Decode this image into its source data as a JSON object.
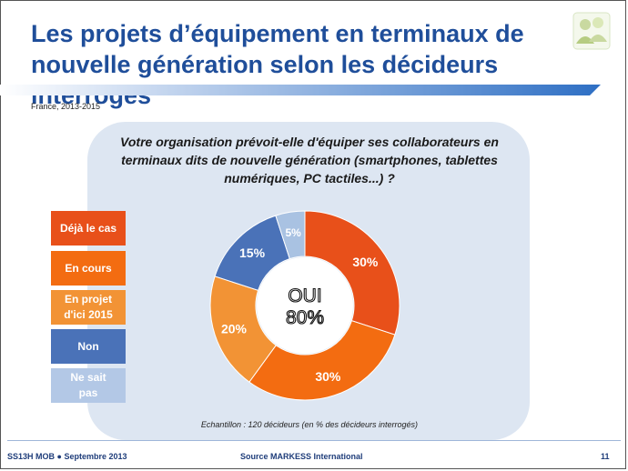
{
  "header": {
    "title": "Les projets d’équipement en terminaux de nouvelle génération selon les décideurs interrogés",
    "subtitle": "France, 2013-2015"
  },
  "chart_data": {
    "type": "pie",
    "title": "Votre organisation prévoit-elle d'équiper ses collaborateurs en terminaux dits de nouvelle génération (smartphones, tablettes numériques, PC tactiles...) ?",
    "categories": [
      "Déjà le cas",
      "En cours",
      "En projet d'ici 2015",
      "Non",
      "Ne sait pas"
    ],
    "values": [
      30,
      30,
      20,
      15,
      5
    ],
    "value_labels": [
      "30%",
      "30%",
      "20%",
      "15%",
      "5%"
    ],
    "colors": [
      "#e8501a",
      "#f36c11",
      "#f29335",
      "#4a72b8",
      "#a9c2e2"
    ],
    "center_label": [
      "OUI",
      "80%"
    ],
    "note": "Echantillon : 120 décideurs (en % des décideurs interrogés)"
  },
  "legend": [
    {
      "line1": "Déjà le cas",
      "line2": "",
      "color": "#e8501a"
    },
    {
      "line1": "En cours",
      "line2": "",
      "color": "#f36c11"
    },
    {
      "line1": "En projet",
      "line2": "d'ici 2015",
      "color": "#f29335"
    },
    {
      "line1": "Non",
      "line2": "",
      "color": "#4a72b8"
    },
    {
      "line1": "Ne sait",
      "line2": "pas",
      "color": "#b3c8e6"
    }
  ],
  "footer": {
    "left": "SS13H MOB ● Septembre 2013",
    "source": "Source MARKESS International",
    "page": "11"
  }
}
